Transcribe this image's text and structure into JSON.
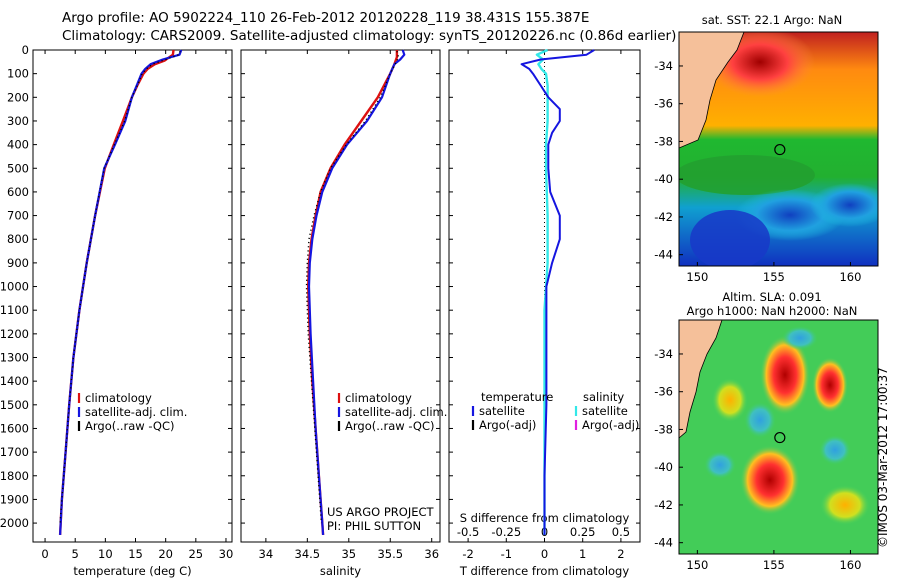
{
  "header": {
    "title_line1": "Argo profile: AO 5902224_110 26-Feb-2012 20120228_119 38.431S 155.387E",
    "title_line2": "Climatology: CARS2009. Satellite-adjusted climatology: synTS_20120226.nc (0.86d earlier)"
  },
  "colors": {
    "climatology": "#dd1010",
    "satellite": "#1515e0",
    "argo": "#000000",
    "s_satellite": "#33e8e8",
    "s_argo": "#e020e0",
    "land": "#f5c09a"
  },
  "chart_data": [
    {
      "type": "line",
      "title": "temperature profile",
      "xlabel": "temperature (deg C)",
      "ylabel": "",
      "xlim": [
        -2,
        31
      ],
      "ylim": [
        2080,
        0
      ],
      "x_ticks": [
        0,
        5,
        10,
        15,
        20,
        25,
        30
      ],
      "x_tick_labels": [
        "0",
        "5",
        "10",
        "15",
        "20",
        "25",
        "30"
      ],
      "y_ticks": [
        0,
        100,
        200,
        300,
        400,
        500,
        600,
        700,
        800,
        900,
        1000,
        1100,
        1200,
        1300,
        1400,
        1500,
        1600,
        1700,
        1800,
        1900,
        2000
      ],
      "y_tick_labels": [
        "0",
        "100",
        "200",
        "300",
        "400",
        "500",
        "600",
        "700",
        "800",
        "900",
        "1000",
        "1100",
        "1200",
        "1300",
        "1400",
        "1500",
        "1600",
        "1700",
        "1800",
        "1900",
        "2000"
      ],
      "legend": [
        "climatology",
        "satellite-adj. clim.",
        "Argo(..raw -QC)"
      ],
      "series": [
        {
          "name": "climatology",
          "depth": [
            0,
            20,
            45,
            60,
            80,
            100,
            150,
            200,
            300,
            400,
            500,
            700,
            900,
            1100,
            1300,
            1500,
            1700,
            1900,
            2050
          ],
          "values": [
            21.3,
            21.2,
            19.8,
            18.2,
            17.0,
            16.3,
            15.3,
            14.4,
            12.9,
            11.4,
            9.9,
            8.3,
            6.9,
            5.7,
            4.7,
            4.0,
            3.4,
            2.8,
            2.5
          ]
        },
        {
          "name": "satellite-adj. clim.",
          "depth": [
            0,
            20,
            40,
            60,
            80,
            100,
            150,
            200,
            300,
            400,
            500,
            700,
            900,
            1100,
            1300,
            1500,
            1700,
            1900,
            2050
          ],
          "values": [
            22.6,
            22.3,
            19.5,
            17.5,
            16.6,
            16.0,
            15.2,
            14.4,
            13.3,
            11.6,
            9.8,
            8.3,
            6.9,
            5.7,
            4.7,
            4.0,
            3.4,
            2.8,
            2.5
          ]
        },
        {
          "name": "Argo(..raw -QC)",
          "depth": [
            5,
            20,
            40,
            60,
            80,
            100,
            150,
            200,
            300,
            400,
            500,
            700,
            900,
            1100,
            1300,
            1500,
            1700,
            1900,
            2000
          ],
          "values": [
            22.4,
            22.2,
            20.0,
            17.8,
            16.8,
            16.1,
            15.3,
            14.4,
            13.2,
            11.5,
            9.8,
            8.3,
            6.9,
            5.7,
            4.7,
            4.0,
            3.4,
            2.8,
            2.5
          ]
        }
      ]
    },
    {
      "type": "line",
      "title": "salinity profile",
      "xlabel": "salinity",
      "ylabel": "",
      "xlim": [
        33.7,
        36.1
      ],
      "ylim": [
        2080,
        0
      ],
      "x_ticks": [
        34,
        34.5,
        35,
        35.5,
        36
      ],
      "x_tick_labels": [
        "34",
        "34.5",
        "35",
        "35.5",
        "36"
      ],
      "legend": [
        "climatology",
        "satellite-adj. clim.",
        "Argo(..raw -QC)"
      ],
      "annotation": [
        "US ARGO PROJECT",
        "PI: PHIL SUTTON"
      ],
      "series": [
        {
          "name": "climatology",
          "depth": [
            0,
            30,
            60,
            100,
            200,
            300,
            400,
            500,
            600,
            700,
            800,
            900,
            1000,
            1200,
            1400,
            1600,
            1800,
            2000,
            2050
          ],
          "values": [
            35.58,
            35.58,
            35.55,
            35.5,
            35.35,
            35.15,
            34.95,
            34.78,
            34.66,
            34.6,
            34.55,
            34.52,
            34.51,
            34.53,
            34.56,
            34.6,
            34.64,
            34.68,
            34.69
          ]
        },
        {
          "name": "satellite-adj. clim.",
          "depth": [
            0,
            20,
            40,
            60,
            100,
            200,
            300,
            400,
            500,
            600,
            700,
            800,
            900,
            1000,
            1200,
            1400,
            1600,
            1800,
            2000,
            2050
          ],
          "values": [
            35.65,
            35.67,
            35.62,
            35.55,
            35.5,
            35.4,
            35.22,
            34.98,
            34.8,
            34.68,
            34.61,
            34.56,
            34.53,
            34.52,
            34.54,
            34.57,
            34.6,
            34.64,
            34.68,
            34.69
          ]
        },
        {
          "name": "Argo(..raw -QC)",
          "depth": [
            5,
            30,
            60,
            100,
            200,
            300,
            400,
            500,
            600,
            700,
            800,
            900,
            1000,
            1200,
            1400,
            1600,
            1800,
            2000
          ],
          "values": [
            35.58,
            35.6,
            35.56,
            35.5,
            35.38,
            35.2,
            34.97,
            34.78,
            34.66,
            34.58,
            34.52,
            34.5,
            34.49,
            34.51,
            34.55,
            34.59,
            34.63,
            34.67
          ]
        }
      ]
    },
    {
      "type": "line",
      "title": "difference from climatology",
      "xlabel": "T difference from climatology",
      "xlabel_top": "S difference from climatology",
      "xlim": [
        -2.5,
        2.5
      ],
      "ylim": [
        2080,
        0
      ],
      "x_ticks": [
        -2,
        -1,
        0,
        1,
        2
      ],
      "x_tick_labels": [
        "-2",
        "-1",
        "0",
        "1",
        "2"
      ],
      "s_ticks": [
        -0.5,
        -0.25,
        0,
        0.25,
        0.5
      ],
      "s_tick_labels": [
        "-0.5",
        "-0.25",
        "0",
        "0.25",
        "0.5"
      ],
      "legend_temperature": {
        "header": "temperature",
        "items": [
          "satellite",
          "Argo(-adj)"
        ]
      },
      "legend_salinity": {
        "header": "salinity",
        "items": [
          "satellite",
          "Argo(-adj)"
        ]
      },
      "series": [
        {
          "name": "T satellite",
          "depth": [
            0,
            20,
            40,
            60,
            80,
            100,
            150,
            200,
            250,
            300,
            350,
            400,
            450,
            500,
            600,
            700,
            800,
            900,
            1000,
            1200,
            1500,
            1800,
            2050
          ],
          "values": [
            1.3,
            1.1,
            -0.1,
            -0.6,
            -0.4,
            -0.3,
            -0.1,
            0.1,
            0.4,
            0.4,
            0.2,
            0.1,
            0.1,
            0.1,
            0.15,
            0.4,
            0.4,
            0.2,
            0.05,
            0.05,
            0.05,
            0.0,
            0.0
          ]
        },
        {
          "name": "S satellite",
          "depth": [
            0,
            20,
            40,
            60,
            80,
            100,
            150,
            200,
            300,
            400,
            500,
            700,
            900,
            1100,
            1400,
            1700,
            2050
          ],
          "values": [
            0.02,
            -0.05,
            -0.01,
            -0.04,
            -0.02,
            0.01,
            0.02,
            0.02,
            0.02,
            0.01,
            0.01,
            0.02,
            0.02,
            0.0,
            0.0,
            0.0,
            0.0
          ]
        }
      ]
    }
  ],
  "maps": {
    "sst": {
      "title": "sat. SST: 22.1  Argo: NaN",
      "x_ticks": [
        150,
        155,
        160
      ],
      "x_tick_labels": [
        "150",
        "155",
        "160"
      ],
      "y_ticks": [
        -34,
        -36,
        -38,
        -40,
        -42,
        -44
      ],
      "y_tick_labels": [
        "-34",
        "-36",
        "-38",
        "-40",
        "-42",
        "-44"
      ],
      "lon_range": [
        148.8,
        161.8
      ],
      "lat_range": [
        -44.6,
        -32.2
      ],
      "float_position": {
        "lon": 155.387,
        "lat": -38.431
      }
    },
    "sla": {
      "title_line1": "Altim. SLA: 0.091",
      "title_line2": "Argo h1000: NaN  h2000: NaN",
      "x_ticks": [
        150,
        155,
        160
      ],
      "x_tick_labels": [
        "150",
        "155",
        "160"
      ],
      "y_ticks": [
        -34,
        -36,
        -38,
        -40,
        -42,
        -44
      ],
      "y_tick_labels": [
        "-34",
        "-36",
        "-38",
        "-40",
        "-42",
        "-44"
      ],
      "lon_range": [
        148.8,
        161.8
      ],
      "lat_range": [
        -44.6,
        -32.2
      ],
      "float_position": {
        "lon": 155.387,
        "lat": -38.431
      }
    }
  },
  "footer": {
    "credit": "©IMOS 03-Mar-2012 17:00:37"
  }
}
